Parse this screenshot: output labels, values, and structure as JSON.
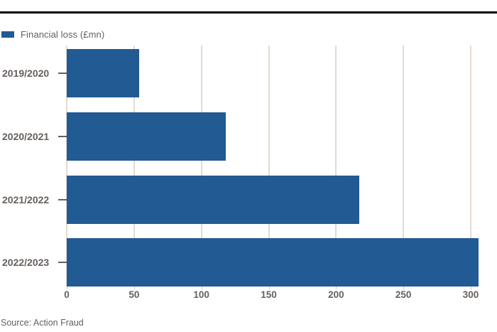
{
  "legend": {
    "label": "Financial loss (£mn)"
  },
  "chart_data": {
    "type": "bar",
    "orientation": "horizontal",
    "title": "",
    "series_name": "Financial loss (£mn)",
    "categories": [
      "2019/2020",
      "2020/2021",
      "2021/2022",
      "2022/2023"
    ],
    "values": [
      54,
      118,
      217,
      306
    ],
    "xlabel": "",
    "ylabel": "",
    "xlim": [
      0,
      300
    ],
    "xticks": [
      0,
      50,
      100,
      150,
      200,
      250,
      300
    ],
    "grid": "vertical-gridlines-behind-bars",
    "legend_position": "top-left"
  },
  "source": {
    "text": "Source: Action Fraud"
  },
  "colors": {
    "bar": "#225a93",
    "gridline": "#e3dad2",
    "axis_tick": "#cfc7bf",
    "text": "#66605c",
    "top_rule": "#000000"
  }
}
